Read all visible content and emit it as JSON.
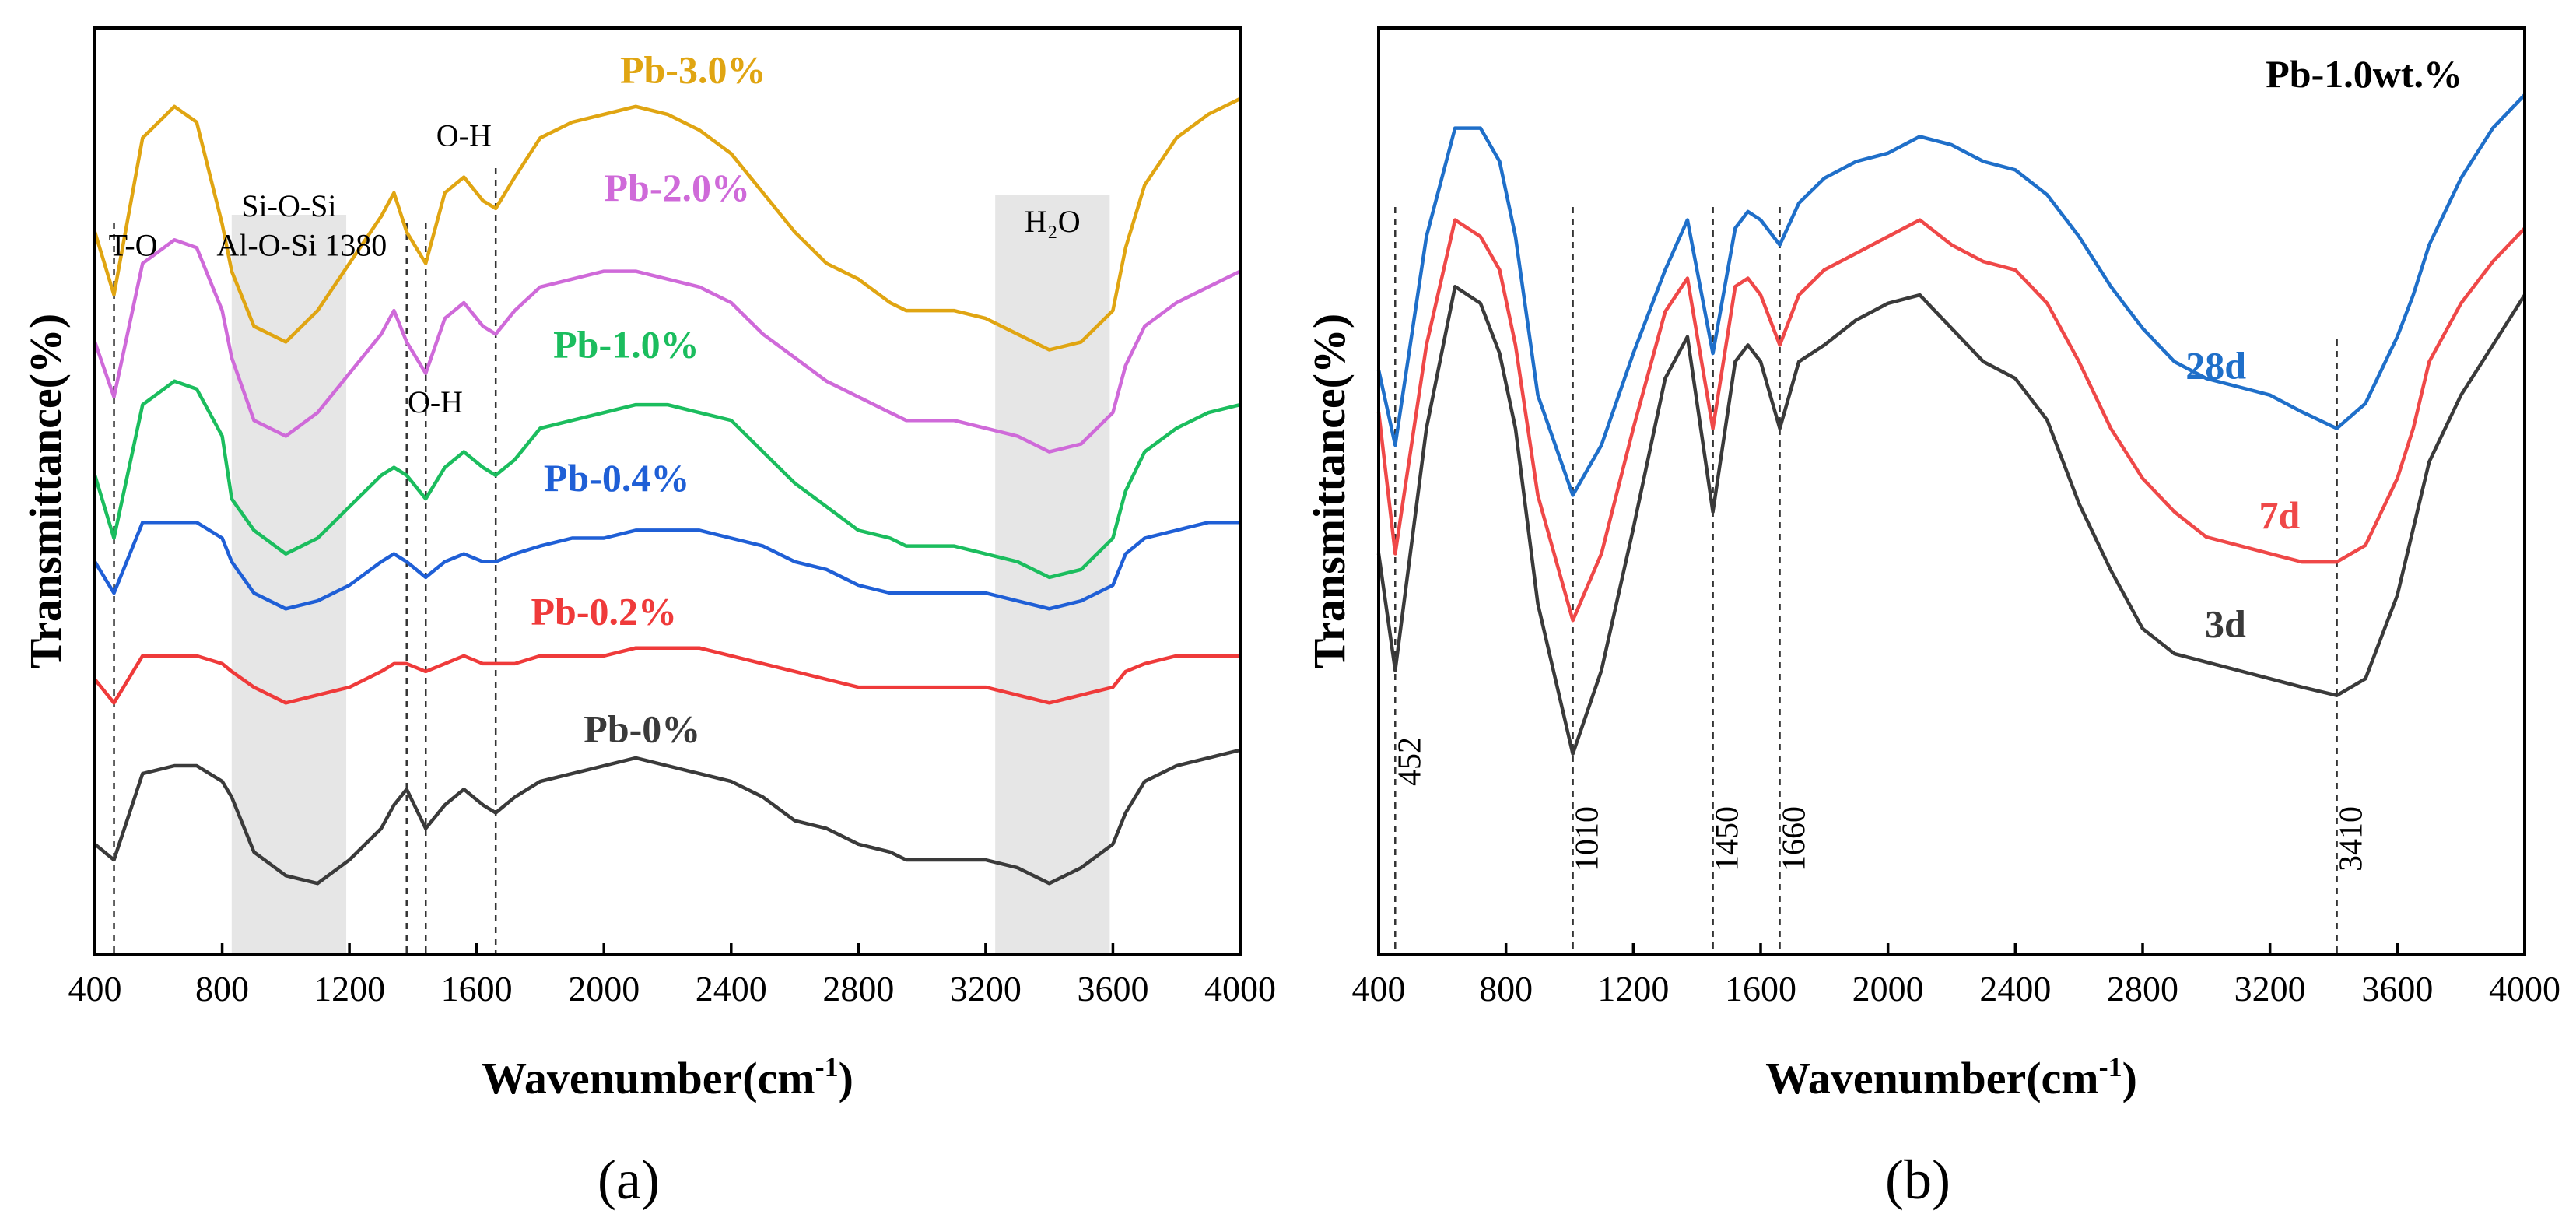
{
  "chart_data": [
    {
      "panel": "(a)",
      "type": "line",
      "xlabel": "Wavenumber(cm",
      "xlabel_sup": "-1",
      "xlabel_end": ")",
      "ylabel": "Transmittance(%)",
      "xlim": [
        400,
        4000
      ],
      "xticks": [
        "400",
        "800",
        "1200",
        "1600",
        "2000",
        "2400",
        "2800",
        "3200",
        "3600",
        "4000"
      ],
      "shaded_bands": [
        [
          830,
          1190
        ],
        [
          3230,
          3590
        ]
      ],
      "reference_lines": [
        460,
        1380,
        1440,
        1660
      ],
      "annotations": [
        {
          "text": "T-O",
          "x": 520,
          "y": 8.1
        },
        {
          "text": "Si-O-Si",
          "x": 1010,
          "y": 8.6
        },
        {
          "text": "Al-O-Si 1380",
          "x": 1050,
          "y": 8.1
        },
        {
          "text": "O-H",
          "x": 1560,
          "y": 9.5
        },
        {
          "text": "O-H",
          "x": 1470,
          "y": 6.1
        },
        {
          "text": "H₂O",
          "x": 3410,
          "y": 8.4
        }
      ],
      "series": [
        {
          "name": "Pb-3.0%",
          "color": "#e0a512",
          "label_x": 2280,
          "label_y": 10.3,
          "x": [
            400,
            460,
            550,
            650,
            720,
            800,
            830,
            900,
            1000,
            1100,
            1200,
            1300,
            1340,
            1380,
            1440,
            1500,
            1560,
            1620,
            1660,
            1720,
            1800,
            1900,
            2000,
            2100,
            2200,
            2300,
            2400,
            2500,
            2600,
            2700,
            2800,
            2900,
            2950,
            3000,
            3100,
            3200,
            3300,
            3400,
            3500,
            3600,
            3640,
            3700,
            3800,
            3900,
            4000
          ],
          "y": [
            8.4,
            7.6,
            9.6,
            10.0,
            9.8,
            8.5,
            7.9,
            7.2,
            7.0,
            7.4,
            8.0,
            8.6,
            8.9,
            8.4,
            8.0,
            8.9,
            9.1,
            8.8,
            8.7,
            9.1,
            9.6,
            9.8,
            9.9,
            10.0,
            9.9,
            9.7,
            9.4,
            8.9,
            8.4,
            8.0,
            7.8,
            7.5,
            7.4,
            7.4,
            7.4,
            7.3,
            7.1,
            6.9,
            7.0,
            7.4,
            8.2,
            9.0,
            9.6,
            9.9,
            10.1
          ]
        },
        {
          "name": "Pb-2.0%",
          "color": "#cf6ad9",
          "label_x": 2230,
          "label_y": 8.8,
          "x": [
            400,
            460,
            550,
            650,
            720,
            800,
            830,
            900,
            1000,
            1100,
            1200,
            1300,
            1340,
            1380,
            1440,
            1500,
            1560,
            1620,
            1660,
            1720,
            1800,
            1900,
            2000,
            2100,
            2200,
            2300,
            2400,
            2500,
            2600,
            2700,
            2800,
            2900,
            2950,
            3000,
            3100,
            3200,
            3300,
            3400,
            3500,
            3600,
            3640,
            3700,
            3800,
            3900,
            4000
          ],
          "y": [
            7.0,
            6.3,
            8.0,
            8.3,
            8.2,
            7.4,
            6.8,
            6.0,
            5.8,
            6.1,
            6.6,
            7.1,
            7.4,
            7.0,
            6.6,
            7.3,
            7.5,
            7.2,
            7.1,
            7.4,
            7.7,
            7.8,
            7.9,
            7.9,
            7.8,
            7.7,
            7.5,
            7.1,
            6.8,
            6.5,
            6.3,
            6.1,
            6.0,
            6.0,
            6.0,
            5.9,
            5.8,
            5.6,
            5.7,
            6.1,
            6.7,
            7.2,
            7.5,
            7.7,
            7.9
          ]
        },
        {
          "name": "Pb-1.0%",
          "color": "#1bbd5e",
          "label_x": 2070,
          "label_y": 6.8,
          "x": [
            400,
            460,
            550,
            650,
            720,
            800,
            830,
            900,
            1000,
            1100,
            1200,
            1300,
            1340,
            1380,
            1440,
            1500,
            1560,
            1620,
            1660,
            1720,
            1800,
            1900,
            2000,
            2100,
            2200,
            2300,
            2400,
            2500,
            2600,
            2700,
            2800,
            2900,
            2950,
            3000,
            3100,
            3200,
            3300,
            3400,
            3500,
            3600,
            3640,
            3700,
            3800,
            3900,
            4000
          ],
          "y": [
            5.3,
            4.5,
            6.2,
            6.5,
            6.4,
            5.8,
            5.0,
            4.6,
            4.3,
            4.5,
            4.9,
            5.3,
            5.4,
            5.3,
            5.0,
            5.4,
            5.6,
            5.4,
            5.3,
            5.5,
            5.9,
            6.0,
            6.1,
            6.2,
            6.2,
            6.1,
            6.0,
            5.6,
            5.2,
            4.9,
            4.6,
            4.5,
            4.4,
            4.4,
            4.4,
            4.3,
            4.2,
            4.0,
            4.1,
            4.5,
            5.1,
            5.6,
            5.9,
            6.1,
            6.2
          ]
        },
        {
          "name": "Pb-0.4%",
          "color": "#1f5fd6",
          "label_x": 2040,
          "label_y": 5.1,
          "x": [
            400,
            460,
            550,
            650,
            720,
            800,
            830,
            900,
            1000,
            1100,
            1200,
            1300,
            1340,
            1380,
            1440,
            1500,
            1560,
            1620,
            1660,
            1720,
            1800,
            1900,
            2000,
            2100,
            2200,
            2300,
            2400,
            2500,
            2600,
            2700,
            2800,
            2900,
            2950,
            3000,
            3100,
            3200,
            3300,
            3400,
            3500,
            3600,
            3640,
            3700,
            3800,
            3900,
            4000
          ],
          "y": [
            4.2,
            3.8,
            4.7,
            4.7,
            4.7,
            4.5,
            4.2,
            3.8,
            3.6,
            3.7,
            3.9,
            4.2,
            4.3,
            4.2,
            4.0,
            4.2,
            4.3,
            4.2,
            4.2,
            4.3,
            4.4,
            4.5,
            4.5,
            4.6,
            4.6,
            4.6,
            4.5,
            4.4,
            4.2,
            4.1,
            3.9,
            3.8,
            3.8,
            3.8,
            3.8,
            3.8,
            3.7,
            3.6,
            3.7,
            3.9,
            4.3,
            4.5,
            4.6,
            4.7,
            4.7
          ]
        },
        {
          "name": "Pb-0.2%",
          "color": "#ef3a3a",
          "label_x": 2000,
          "label_y": 3.4,
          "x": [
            400,
            460,
            550,
            650,
            720,
            800,
            830,
            900,
            1000,
            1100,
            1200,
            1300,
            1340,
            1380,
            1440,
            1500,
            1560,
            1620,
            1660,
            1720,
            1800,
            1900,
            2000,
            2100,
            2200,
            2300,
            2400,
            2500,
            2600,
            2700,
            2800,
            2900,
            2950,
            3000,
            3100,
            3200,
            3300,
            3400,
            3500,
            3600,
            3640,
            3700,
            3800,
            3900,
            4000
          ],
          "y": [
            2.7,
            2.4,
            3.0,
            3.0,
            3.0,
            2.9,
            2.8,
            2.6,
            2.4,
            2.5,
            2.6,
            2.8,
            2.9,
            2.9,
            2.8,
            2.9,
            3.0,
            2.9,
            2.9,
            2.9,
            3.0,
            3.0,
            3.0,
            3.1,
            3.1,
            3.1,
            3.0,
            2.9,
            2.8,
            2.7,
            2.6,
            2.6,
            2.6,
            2.6,
            2.6,
            2.6,
            2.5,
            2.4,
            2.5,
            2.6,
            2.8,
            2.9,
            3.0,
            3.0,
            3.0
          ]
        },
        {
          "name": "Pb-0%",
          "color": "#3a3a3a",
          "label_x": 2120,
          "label_y": 1.9,
          "x": [
            400,
            460,
            550,
            650,
            720,
            800,
            830,
            900,
            1000,
            1100,
            1200,
            1300,
            1340,
            1380,
            1440,
            1500,
            1560,
            1620,
            1660,
            1720,
            1800,
            1900,
            2000,
            2100,
            2200,
            2300,
            2400,
            2500,
            2600,
            2700,
            2800,
            2900,
            2950,
            3000,
            3100,
            3200,
            3300,
            3400,
            3500,
            3600,
            3640,
            3700,
            3800,
            3900,
            4000
          ],
          "y": [
            0.6,
            0.4,
            1.5,
            1.6,
            1.6,
            1.4,
            1.2,
            0.5,
            0.2,
            0.1,
            0.4,
            0.8,
            1.1,
            1.3,
            0.8,
            1.1,
            1.3,
            1.1,
            1.0,
            1.2,
            1.4,
            1.5,
            1.6,
            1.7,
            1.6,
            1.5,
            1.4,
            1.2,
            0.9,
            0.8,
            0.6,
            0.5,
            0.4,
            0.4,
            0.4,
            0.4,
            0.3,
            0.1,
            0.3,
            0.6,
            1.0,
            1.4,
            1.6,
            1.7,
            1.8
          ]
        }
      ]
    },
    {
      "panel": "(b)",
      "type": "line",
      "title": "Pb-1.0wt.%",
      "xlabel": "Wavenumber(cm",
      "xlabel_sup": "-1",
      "xlabel_end": ")",
      "ylabel": "Transmittance(%)",
      "xlim": [
        400,
        4000
      ],
      "xticks": [
        "400",
        "800",
        "1200",
        "1600",
        "2000",
        "2400",
        "2800",
        "3200",
        "3600",
        "4000"
      ],
      "reference_lines": [
        452,
        1010,
        1450,
        1660,
        3410
      ],
      "peak_labels": [
        "452",
        "1010",
        "1450",
        "1660",
        "3410"
      ],
      "series": [
        {
          "name": "28d",
          "color": "#1f6fc9",
          "label_x": 3030,
          "label_y": 6.6,
          "x": [
            400,
            452,
            550,
            640,
            720,
            780,
            830,
            900,
            1010,
            1100,
            1200,
            1300,
            1370,
            1450,
            1520,
            1560,
            1600,
            1660,
            1720,
            1800,
            1900,
            2000,
            2100,
            2200,
            2300,
            2400,
            2500,
            2600,
            2700,
            2800,
            2900,
            3000,
            3100,
            3200,
            3300,
            3410,
            3500,
            3600,
            3650,
            3700,
            3800,
            3900,
            4000
          ],
          "y": [
            6.7,
            5.8,
            8.3,
            9.6,
            9.6,
            9.2,
            8.3,
            6.4,
            5.2,
            5.8,
            6.9,
            7.9,
            8.5,
            6.9,
            8.4,
            8.6,
            8.5,
            8.2,
            8.7,
            9.0,
            9.2,
            9.3,
            9.5,
            9.4,
            9.2,
            9.1,
            8.8,
            8.3,
            7.7,
            7.2,
            6.8,
            6.6,
            6.5,
            6.4,
            6.2,
            6.0,
            6.3,
            7.1,
            7.6,
            8.2,
            9.0,
            9.6,
            10.0
          ]
        },
        {
          "name": "7d",
          "color": "#ef4848",
          "label_x": 3230,
          "label_y": 4.8,
          "x": [
            400,
            452,
            550,
            640,
            720,
            780,
            830,
            900,
            1010,
            1100,
            1200,
            1300,
            1370,
            1450,
            1520,
            1560,
            1600,
            1660,
            1720,
            1800,
            1900,
            2000,
            2100,
            2200,
            2300,
            2400,
            2500,
            2600,
            2700,
            2800,
            2900,
            3000,
            3100,
            3200,
            3300,
            3410,
            3500,
            3600,
            3650,
            3700,
            3800,
            3900,
            4000
          ],
          "y": [
            6.2,
            4.5,
            7.0,
            8.5,
            8.3,
            7.9,
            7.0,
            5.2,
            3.7,
            4.5,
            6.0,
            7.4,
            7.8,
            6.0,
            7.7,
            7.8,
            7.6,
            7.0,
            7.6,
            7.9,
            8.1,
            8.3,
            8.5,
            8.2,
            8.0,
            7.9,
            7.5,
            6.8,
            6.0,
            5.4,
            5.0,
            4.7,
            4.6,
            4.5,
            4.4,
            4.4,
            4.6,
            5.4,
            6.0,
            6.8,
            7.5,
            8.0,
            8.4
          ]
        },
        {
          "name": "3d",
          "color": "#3a3a3a",
          "label_x": 3060,
          "label_y": 3.5,
          "x": [
            400,
            452,
            550,
            640,
            720,
            780,
            830,
            900,
            1010,
            1100,
            1200,
            1300,
            1370,
            1450,
            1520,
            1560,
            1600,
            1660,
            1720,
            1800,
            1900,
            2000,
            2100,
            2200,
            2300,
            2400,
            2500,
            2600,
            2700,
            2800,
            2900,
            3000,
            3100,
            3200,
            3300,
            3410,
            3500,
            3600,
            3650,
            3700,
            3800,
            3900,
            4000
          ],
          "y": [
            4.5,
            3.1,
            6.0,
            7.7,
            7.5,
            6.9,
            6.0,
            3.9,
            2.1,
            3.1,
            4.8,
            6.6,
            7.1,
            5.0,
            6.8,
            7.0,
            6.8,
            6.0,
            6.8,
            7.0,
            7.3,
            7.5,
            7.6,
            7.2,
            6.8,
            6.6,
            6.1,
            5.1,
            4.3,
            3.6,
            3.3,
            3.2,
            3.1,
            3.0,
            2.9,
            2.8,
            3.0,
            4.0,
            4.8,
            5.6,
            6.4,
            7.0,
            7.6
          ]
        }
      ]
    }
  ],
  "captions": {
    "a": "(a)",
    "b": "(b)"
  }
}
